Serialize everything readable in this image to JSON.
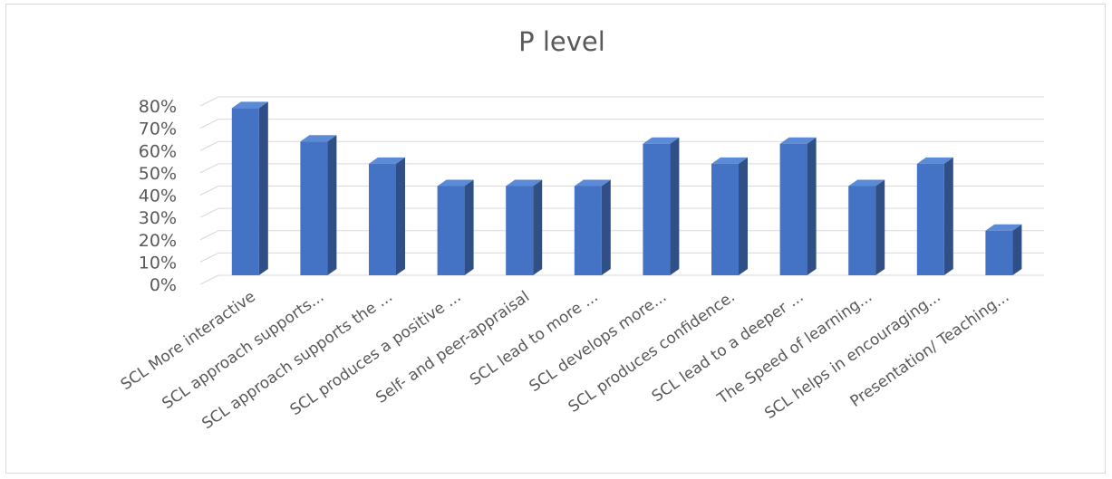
{
  "chart_data": {
    "type": "bar",
    "title": "P level",
    "xlabel": "",
    "ylabel": "",
    "ylim": [
      0,
      0.8
    ],
    "y_ticks": [
      "0%",
      "10%",
      "20%",
      "30%",
      "40%",
      "50%",
      "60%",
      "70%",
      "80%"
    ],
    "grid": true,
    "style": "3d-column",
    "bar_color": "#4472c4",
    "bar_side_color": "#2f4f86",
    "bar_top_color": "#5b8ad6",
    "categories": [
      "SCL More interactive",
      "SCL approach supports...",
      "SCL approach supports the ...",
      "SCL produces a positive ...",
      "Self- and peer-appraisal",
      "SCL lead to more ...",
      "SCL develops more...",
      "SCL produces confidence.",
      "SCL lead to a deeper ...",
      "The Speed of learning...",
      "SCL helps in encouraging...",
      "Presentation/ Teaching..."
    ],
    "values": [
      0.75,
      0.6,
      0.5,
      0.4,
      0.4,
      0.4,
      0.59,
      0.5,
      0.59,
      0.4,
      0.5,
      0.2
    ]
  }
}
